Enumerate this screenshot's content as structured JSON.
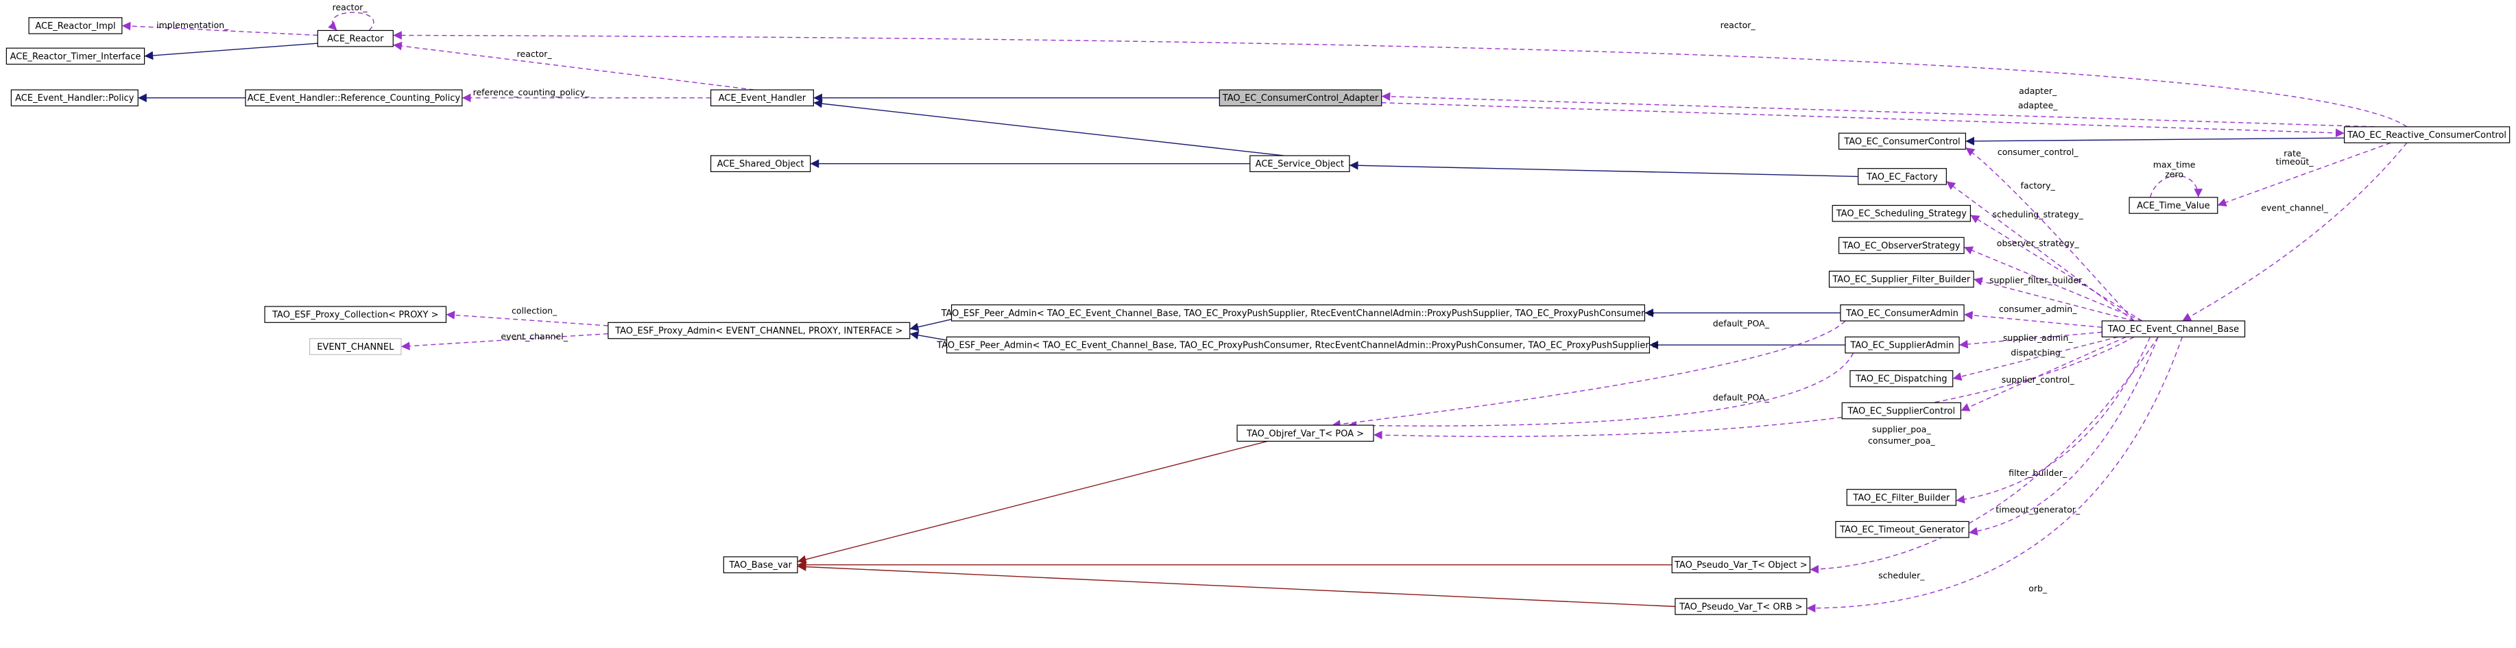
{
  "nodes": [
    "ACE_Reactor_Impl",
    "ACE_Reactor_Timer_Interface",
    "ACE_Reactor",
    "ACE_Event_Handler::Policy",
    "ACE_Event_Handler::Reference_Counting_Policy",
    "ACE_Event_Handler",
    "TAO_EC_ConsumerControl_Adapter",
    "TAO_EC_Reactive_ConsumerControl",
    "TAO_EC_ConsumerControl",
    "ACE_Shared_Object",
    "ACE_Service_Object",
    "TAO_EC_Factory",
    "ACE_Time_Value",
    "TAO_EC_Scheduling_Strategy",
    "TAO_EC_ObserverStrategy",
    "TAO_EC_Supplier_Filter_Builder",
    "TAO_EC_ConsumerAdmin",
    "TAO_EC_Event_Channel_Base",
    "TAO_ESF_Peer_Admin< TAO_EC_Event_Channel_Base, TAO_EC_ProxyPushSupplier, RtecEventChannelAdmin::ProxyPushSupplier, TAO_EC_ProxyPushConsumer >",
    "TAO_ESF_Proxy_Collection< PROXY >",
    "TAO_ESF_Proxy_Admin< EVENT_CHANNEL, PROXY, INTERFACE >",
    "TAO_ESF_Peer_Admin< TAO_EC_Event_Channel_Base, TAO_EC_ProxyPushConsumer, RtecEventChannelAdmin::ProxyPushConsumer, TAO_EC_ProxyPushSupplier >",
    "TAO_EC_SupplierAdmin",
    "EVENT_CHANNEL",
    "TAO_EC_Dispatching",
    "TAO_EC_SupplierControl",
    "TAO_Objref_Var_T< POA >",
    "TAO_EC_Filter_Builder",
    "TAO_EC_Timeout_Generator",
    "TAO_Base_var",
    "TAO_Pseudo_Var_T< Object >",
    "TAO_Pseudo_Var_T< ORB >"
  ],
  "edge_labels": [
    "reactor_",
    "implementation_",
    "reactor_",
    "reactor_",
    "reference_counting_policy_",
    "adapter_",
    "adaptee_",
    "consumer_control_",
    "max_time",
    "zero",
    "rate_",
    "timeout_",
    "factory_",
    "event_channel_",
    "scheduling_strategy_",
    "observer_strategy_",
    "supplier_filter_builder_",
    "consumer_admin_",
    "collection_",
    "default_POA_",
    "event_channel_",
    "supplier_admin_",
    "dispatching_",
    "supplier_control_",
    "default_POA_",
    "supplier_poa_",
    "consumer_poa_",
    "filter_builder_",
    "timeout_generator_",
    "scheduler_",
    "orb_"
  ]
}
